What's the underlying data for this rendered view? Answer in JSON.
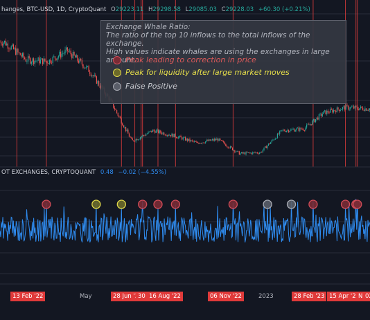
{
  "legend_top": {
    "symbol": "hanges, BTC-USD, 1D, CryptoQuant",
    "open_k": "O",
    "open_v": "29223.11",
    "high_k": "H",
    "high_v": "29298.58",
    "low_k": "L",
    "low_v": "29085.03",
    "close_k": "C",
    "close_v": "29228.03",
    "change": "+60.30 (+0.21%)"
  },
  "legend_sub": {
    "name": "OT EXCHANGES, CRYPTOQUANT",
    "value": "0.48",
    "change": "−0.02 (−4.55%)"
  },
  "infobox": {
    "title": "Exchange Whale Ratio:",
    "line1": "The ratio of the top 10 inflows to the total inflows of the exchange.",
    "line2": "High values indicate whales are using the exchanges in large amount.",
    "items": [
      {
        "label": "Peak leading to correction in price",
        "color": "#e05a5a"
      },
      {
        "label": "Peak for liquidity after large market moves",
        "color": "#e8e04a"
      },
      {
        "label": "False Positive",
        "color": "#a8abb3"
      }
    ]
  },
  "x_axis": {
    "labels": [
      {
        "text": "13 Feb '22",
        "highlight": true
      },
      {
        "text": "May",
        "highlight": false
      },
      {
        "text": "28 Jun '2",
        "highlight": true
      },
      {
        "text": "30",
        "highlight": true
      },
      {
        "text": "16 Aug '22",
        "highlight": true
      },
      {
        "text": "06 Nov '22",
        "highlight": true
      },
      {
        "text": "2023",
        "highlight": false
      },
      {
        "text": "28 Feb '23",
        "highlight": true
      },
      {
        "text": "15 Apr '23",
        "highlight": true
      },
      {
        "text": "N",
        "highlight": true
      },
      {
        "text": "02",
        "highlight": true
      }
    ]
  },
  "colors": {
    "background": "#131722",
    "grid": "#2a2e39",
    "vline": "#d93b3b",
    "up": "#26a69a",
    "down": "#ef5350",
    "ratio_line": "#2f8cf0"
  },
  "chart_data": [
    {
      "type": "candlestick",
      "series_name": "BTC-USD, 1D",
      "ohlc_last": {
        "open": 29223.11,
        "high": 29298.58,
        "low": 29085.03,
        "close": 29228.03,
        "change": 60.3,
        "change_pct": 0.21
      },
      "x": [
        "2021-12",
        "2022-01",
        "2022-02",
        "2022-03",
        "2022-04",
        "2022-05",
        "2022-06",
        "2022-07",
        "2022-08",
        "2022-09",
        "2022-10",
        "2022-11",
        "2022-12",
        "2023-01",
        "2023-02",
        "2023-03",
        "2023-04",
        "2023-05"
      ],
      "close_approx": [
        48000,
        43000,
        42500,
        45500,
        40000,
        31500,
        20000,
        23000,
        21500,
        19500,
        20500,
        16500,
        16800,
        23000,
        23500,
        28000,
        29500,
        29200
      ],
      "event_lines": [
        "2022-01-02",
        "2022-02-13",
        "2022-05-31",
        "2022-06-19",
        "2022-06-28",
        "2022-06-30",
        "2022-07-22",
        "2022-08-16",
        "2022-11-06",
        "2023-02-28",
        "2023-04-15",
        "2023-04-30",
        "2023-05-02"
      ]
    },
    {
      "type": "line",
      "series_name": "Exchange Whale Ratio",
      "last_value": 0.48,
      "last_change": -0.02,
      "last_change_pct": -4.55,
      "peaks": [
        {
          "date": "2022-02-13",
          "kind": "correction"
        },
        {
          "date": "2022-04-25",
          "kind": "liquidity"
        },
        {
          "date": "2022-05-31",
          "kind": "liquidity"
        },
        {
          "date": "2022-06-30",
          "kind": "correction"
        },
        {
          "date": "2022-07-22",
          "kind": "correction"
        },
        {
          "date": "2022-08-16",
          "kind": "correction"
        },
        {
          "date": "2022-11-06",
          "kind": "correction"
        },
        {
          "date": "2022-12-25",
          "kind": "false_positive"
        },
        {
          "date": "2023-01-28",
          "kind": "false_positive"
        },
        {
          "date": "2023-02-28",
          "kind": "correction"
        },
        {
          "date": "2023-04-15",
          "kind": "correction"
        },
        {
          "date": "2023-04-30",
          "kind": "correction"
        },
        {
          "date": "2023-05-02",
          "kind": "correction"
        }
      ]
    }
  ]
}
